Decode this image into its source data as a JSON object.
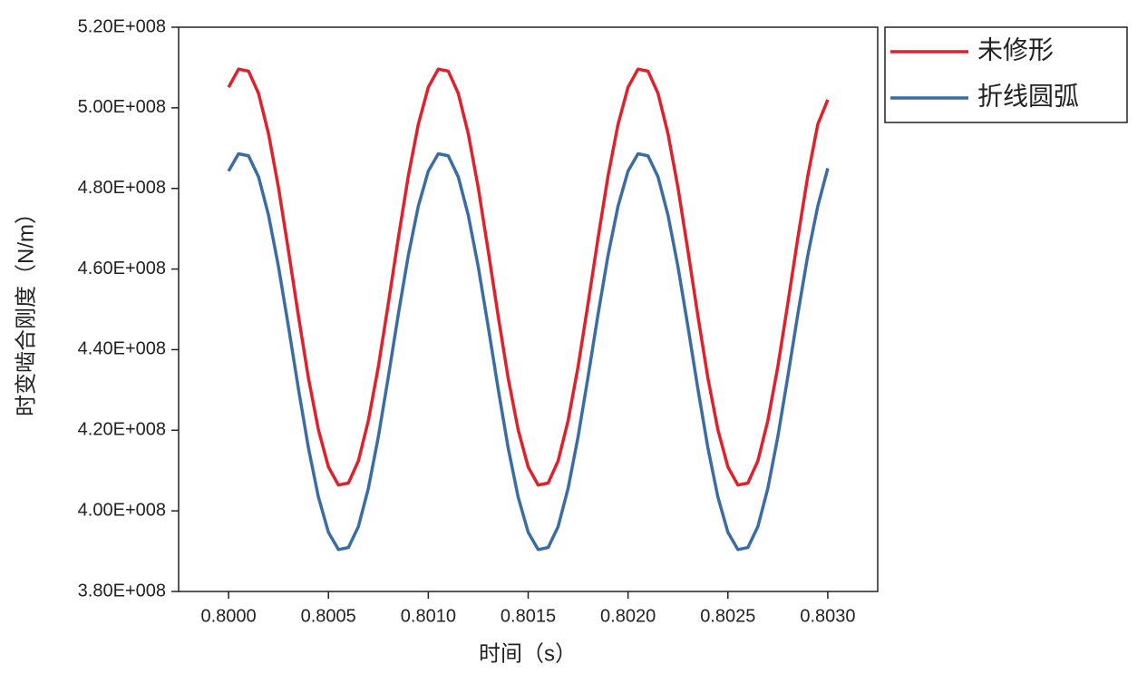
{
  "chart_data": {
    "type": "line",
    "xlabel": "时间（s）",
    "ylabel": "时变啮合刚度（N/m）",
    "x": [
      0.8,
      0.80005,
      0.8001,
      0.80015,
      0.8002,
      0.80025,
      0.8003,
      0.80035,
      0.8004,
      0.80045,
      0.8005,
      0.80055,
      0.8006,
      0.80065,
      0.8007,
      0.80075,
      0.8008,
      0.80085,
      0.8009,
      0.80095,
      0.801,
      0.80105,
      0.8011,
      0.80115,
      0.8012,
      0.80125,
      0.8013,
      0.80135,
      0.8014,
      0.80145,
      0.8015,
      0.80155,
      0.8016,
      0.80165,
      0.8017,
      0.80175,
      0.8018,
      0.80185,
      0.8019,
      0.80195,
      0.802,
      0.80205,
      0.8021,
      0.80215,
      0.8022,
      0.80225,
      0.8023,
      0.80235,
      0.8024,
      0.80245,
      0.8025,
      0.80255,
      0.8026,
      0.80265,
      0.8027,
      0.80275,
      0.8028,
      0.80285,
      0.8029,
      0.80295,
      0.803
    ],
    "series": [
      {
        "name": "未修形",
        "color": "#e0202a",
        "values": [
          505100000,
          509600000,
          509100000,
          503600000,
          493600000,
          480200000,
          464500000,
          448300000,
          432900000,
          420100000,
          410900000,
          406400000,
          406900000,
          412400000,
          422400000,
          435800000,
          451500000,
          467700000,
          483100000,
          495900000,
          505100000,
          509600000,
          509100000,
          503600000,
          493600000,
          480200000,
          464500000,
          448300000,
          432900000,
          420100000,
          410900000,
          406400000,
          406900000,
          412400000,
          422400000,
          435800000,
          451500000,
          467700000,
          483100000,
          495900000,
          505100000,
          509600000,
          509100000,
          503600000,
          493600000,
          480200000,
          464500000,
          448300000,
          432900000,
          420100000,
          410900000,
          406400000,
          406900000,
          412400000,
          422400000,
          435800000,
          451500000,
          467700000,
          483100000,
          495900000,
          502000000
        ]
      },
      {
        "name": "折线圆弧",
        "color": "#3a6da3",
        "values": [
          484300000,
          488600000,
          488100000,
          482900000,
          473400000,
          460600000,
          445700000,
          430200000,
          415600000,
          403400000,
          394700000,
          390400000,
          390900000,
          396100000,
          405600000,
          418400000,
          433300000,
          448800000,
          463400000,
          475600000,
          484300000,
          488600000,
          488100000,
          482900000,
          473400000,
          460600000,
          445700000,
          430200000,
          415600000,
          403400000,
          394700000,
          390400000,
          390900000,
          396100000,
          405600000,
          418400000,
          433300000,
          448800000,
          463400000,
          475600000,
          484300000,
          488600000,
          488100000,
          482900000,
          473400000,
          460600000,
          445700000,
          430200000,
          415600000,
          403400000,
          394700000,
          390400000,
          390900000,
          396100000,
          405600000,
          418400000,
          433300000,
          448800000,
          463400000,
          475600000,
          485000000
        ]
      }
    ],
    "xlim": [
      0.79975,
      0.80325
    ],
    "xticks": [
      {
        "value": 0.8,
        "label": "0.8000"
      },
      {
        "value": 0.8005,
        "label": "0.8005"
      },
      {
        "value": 0.801,
        "label": "0.8010"
      },
      {
        "value": 0.8015,
        "label": "0.8015"
      },
      {
        "value": 0.802,
        "label": "0.8020"
      },
      {
        "value": 0.8025,
        "label": "0.8025"
      },
      {
        "value": 0.803,
        "label": "0.8030"
      }
    ],
    "ylim": [
      380000000,
      520000000
    ],
    "yticks": [
      {
        "value": 380000000,
        "label": "3.80E+008"
      },
      {
        "value": 400000000,
        "label": "4.00E+008"
      },
      {
        "value": 420000000,
        "label": "4.20E+008"
      },
      {
        "value": 440000000,
        "label": "4.40E+008"
      },
      {
        "value": 460000000,
        "label": "4.60E+008"
      },
      {
        "value": 480000000,
        "label": "4.80E+008"
      },
      {
        "value": 500000000,
        "label": "5.00E+008"
      },
      {
        "value": 520000000,
        "label": "5.20E+008"
      }
    ],
    "legend": "outside-right"
  }
}
